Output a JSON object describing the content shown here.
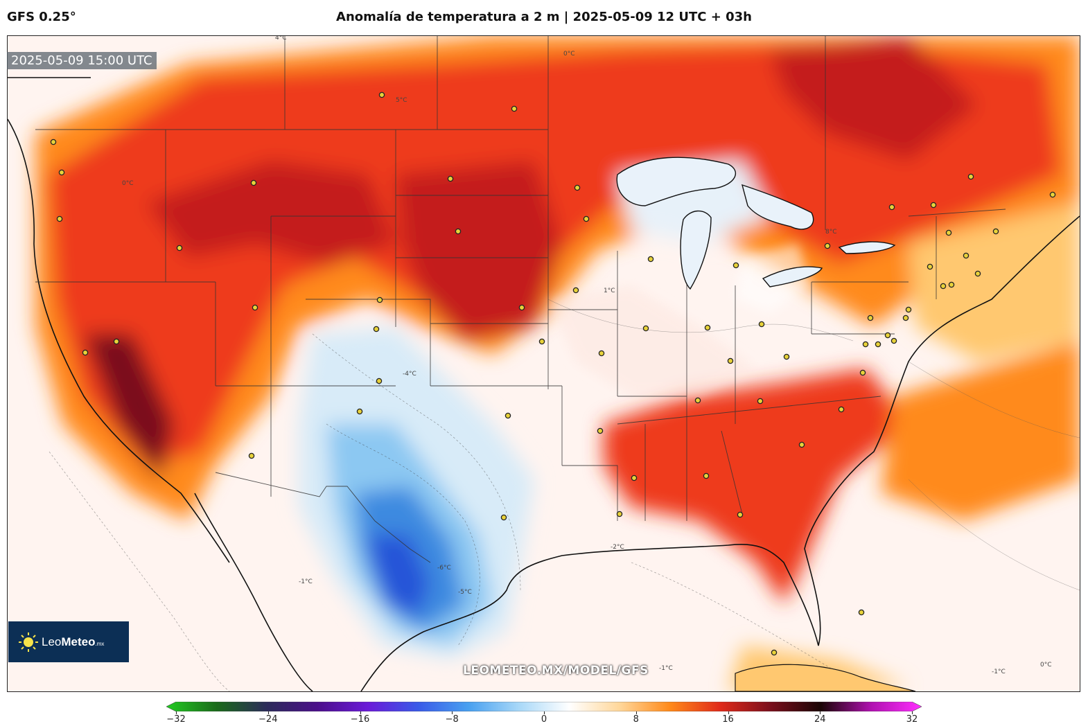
{
  "header": {
    "model": "GFS 0.25°",
    "title": "Anomalía de temperatura a 2 m | 2025-05-09 12 UTC + 03h"
  },
  "map": {
    "valid_time": "2025-05-09 15:00 UTC",
    "watermark": "LEOMETEO.MX/MODEL/GFS",
    "contour_labels": [
      "0°C",
      "-1°C",
      "5°C",
      "4°C",
      "-2°C",
      "-4°C",
      "-6°C",
      "8°C",
      "1°C",
      "-5°C"
    ],
    "colors": {
      "ocean_base": "#fff3ee",
      "warm_light": "#ffc870",
      "warm_mid": "#ff8a1a",
      "hot": "#ee3b1b",
      "very_hot": "#c41c1c",
      "extreme": "#7a0f1c",
      "cool_light": "#d8ebf8",
      "cool_mid": "#8cc8f2",
      "cold": "#3c8ae0",
      "very_cold": "#2855d8",
      "city_dot": "#e8d23a"
    }
  },
  "logo": {
    "name_light": "Leo",
    "name_bold": "Meteo",
    "suffix": ".mx"
  },
  "colorbar": {
    "ticks": [
      "−32",
      "−24",
      "−16",
      "−8",
      "0",
      "8",
      "16",
      "24",
      "32"
    ],
    "tick_values": [
      -32,
      -24,
      -16,
      -8,
      0,
      8,
      16,
      24,
      32
    ],
    "min": -32,
    "max": 32,
    "stops": [
      "#22cc22",
      "#1a6a1a",
      "#2b2b5a",
      "#4b0f8a",
      "#6a1ad8",
      "#3a5ae8",
      "#48a0f0",
      "#a8d8f8",
      "#ffffff",
      "#ffd79a",
      "#ff8a1a",
      "#e02a1a",
      "#7a0f1c",
      "#1a0505",
      "#b010b0",
      "#ff30ff"
    ]
  }
}
